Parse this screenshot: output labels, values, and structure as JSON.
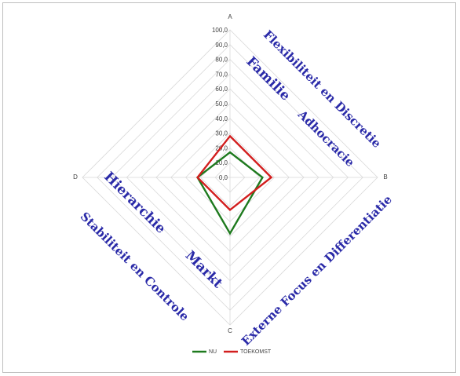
{
  "chart_data": {
    "type": "radar",
    "axes": [
      "A",
      "B",
      "C",
      "D"
    ],
    "rmax": 100,
    "ticks": [
      "0,0",
      "10,0",
      "20,0",
      "30,0",
      "40,0",
      "50,0",
      "60,0",
      "70,0",
      "80,0",
      "90,0",
      "100,0"
    ],
    "grid": true,
    "legend_position": "bottom",
    "series": [
      {
        "name": "NU",
        "color": "#1e7a1e",
        "values": [
          17,
          22,
          38,
          22
        ]
      },
      {
        "name": "TOEKOMST",
        "color": "#d21e1e",
        "values": [
          28,
          28,
          22,
          22
        ]
      }
    ],
    "quadrant_labels": [
      {
        "text": "Familie"
      },
      {
        "text": "Flexibiliteit en Discretie"
      },
      {
        "text": "Adhocracie"
      },
      {
        "text": "Hierarchie"
      },
      {
        "text": "Stabiliteit en Controle"
      },
      {
        "text": "Markt"
      },
      {
        "text": "Externe Focus en Differentiatie"
      }
    ]
  }
}
